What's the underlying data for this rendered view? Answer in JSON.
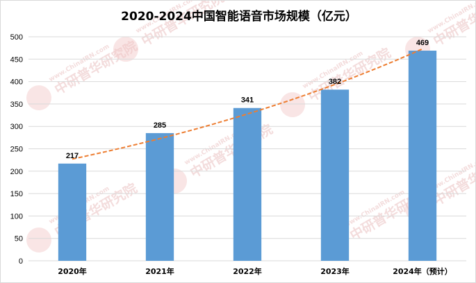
{
  "chart_data": {
    "type": "bar",
    "title": "2020-2024中国智能语音市场规模（亿元）",
    "categories": [
      "2020年",
      "2021年",
      "2022年",
      "2023年",
      "2024年（预计）"
    ],
    "values": [
      217,
      285,
      341,
      382,
      469
    ],
    "trendline": "exponential",
    "ylim": [
      0,
      500
    ],
    "ytick_step": 50,
    "grid": true,
    "legend": "none",
    "colors": {
      "bar": "#5b9bd5",
      "trend": "#ed7d31"
    }
  },
  "watermark": {
    "site": "www.ChinaIRN.com",
    "brand": "中研普华研究院",
    "logo": "CIRN"
  }
}
